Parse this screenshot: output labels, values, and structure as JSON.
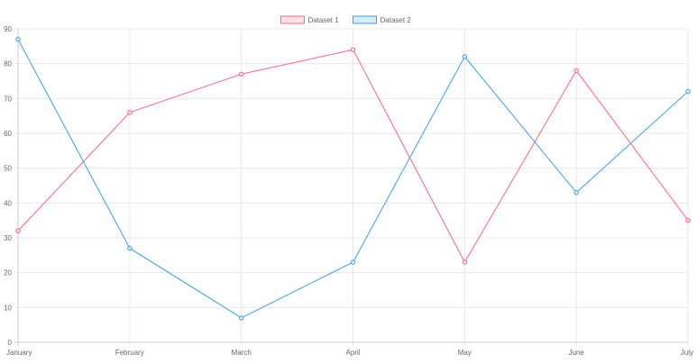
{
  "chart_data": {
    "type": "line",
    "categories": [
      "January",
      "February",
      "March",
      "April",
      "May",
      "June",
      "July"
    ],
    "ylim": [
      0,
      90
    ],
    "yticks": [
      0,
      10,
      20,
      30,
      40,
      50,
      60,
      70,
      80,
      90
    ],
    "grid": true,
    "legend_position": "top",
    "series": [
      {
        "name": "Dataset 1",
        "values": [
          32,
          66,
          77,
          84,
          23,
          78,
          35
        ],
        "color": "#ff6384",
        "fill": "#ffe0e6"
      },
      {
        "name": "Dataset 2",
        "values": [
          87,
          27,
          7,
          23,
          82,
          43,
          72
        ],
        "color": "#36a2eb",
        "fill": "#d7ecfb"
      }
    ]
  }
}
